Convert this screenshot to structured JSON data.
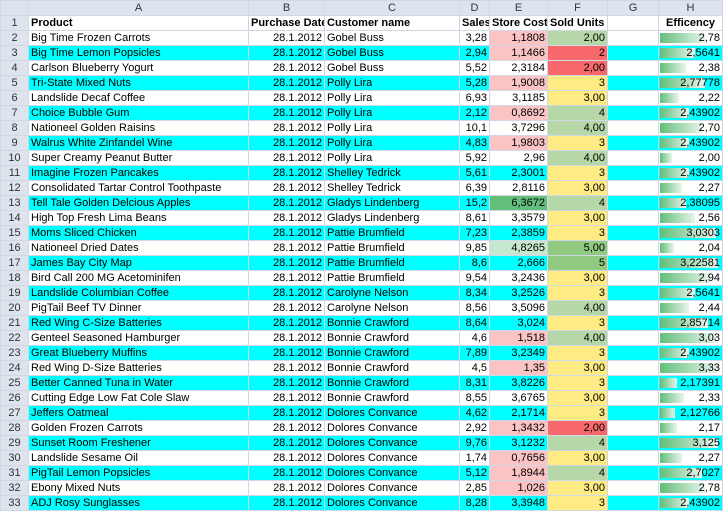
{
  "columns": [
    "A",
    "B",
    "C",
    "D",
    "E",
    "F",
    "G",
    "H"
  ],
  "headers": [
    "Product",
    "Purchase Date",
    "Customer name",
    "Sales",
    "Store Costs",
    "Sold Units",
    "",
    "Efficency"
  ],
  "colors": {
    "cyan": "#00ffff",
    "cost_red": "#f8696b",
    "cost_light_red": "#fbc3c4",
    "cost_green": "#63be7b",
    "cost_light_green": "#c6e8ce",
    "units_red": "#f8696b",
    "units_yellow": "#ffeb84",
    "units_green": "#b6d7a8",
    "units_dark_green": "#8fca80",
    "bar_green": "#63be7b"
  },
  "rows": [
    {
      "n": "2",
      "product": "Big Time Frozen Carrots",
      "date": "28.1.2012",
      "customer": "Gobel Buss",
      "sales": "3,28",
      "cost": "1,1808",
      "cost_c": "r",
      "units": "2,00",
      "units_c": "g",
      "eff": "2,78",
      "eff_v": 0.78,
      "cyan": false
    },
    {
      "n": "3",
      "product": "Big Time Lemon Popsicles",
      "date": "28.1.2012",
      "customer": "Gobel Buss",
      "sales": "2,94",
      "cost": "1,1466",
      "cost_c": "r",
      "units": "2",
      "units_c": "R",
      "eff": "2,5641",
      "eff_v": 0.6,
      "cyan": true
    },
    {
      "n": "4",
      "product": "Carlson Blueberry Yogurt",
      "date": "28.1.2012",
      "customer": "Gobel Buss",
      "sales": "5,52",
      "cost": "2,3184",
      "cost_c": "",
      "units": "2,00",
      "units_c": "R",
      "eff": "2,38",
      "eff_v": 0.45,
      "cyan": false
    },
    {
      "n": "5",
      "product": "Tri-State Mixed Nuts",
      "date": "28.1.2012",
      "customer": "Polly Lira",
      "sales": "5,28",
      "cost": "1,9008",
      "cost_c": "r",
      "units": "3",
      "units_c": "y",
      "eff": "2,77778",
      "eff_v": 0.78,
      "cyan": true
    },
    {
      "n": "6",
      "product": "Landslide Decaf Coffee",
      "date": "28.1.2012",
      "customer": "Polly Lira",
      "sales": "6,93",
      "cost": "3,1185",
      "cost_c": "",
      "units": "3,00",
      "units_c": "y",
      "eff": "2,22",
      "eff_v": 0.33,
      "cyan": false
    },
    {
      "n": "7",
      "product": "Choice Bubble Gum",
      "date": "28.1.2012",
      "customer": "Polly Lira",
      "sales": "2,12",
      "cost": "0,8692",
      "cost_c": "r",
      "units": "4",
      "units_c": "g",
      "eff": "2,43902",
      "eff_v": 0.5,
      "cyan": true
    },
    {
      "n": "8",
      "product": "Nationeel Golden Raisins",
      "date": "28.1.2012",
      "customer": "Polly Lira",
      "sales": "10,1",
      "cost": "3,7296",
      "cost_c": "",
      "units": "4,00",
      "units_c": "g",
      "eff": "2,70",
      "eff_v": 0.72,
      "cyan": false
    },
    {
      "n": "9",
      "product": "Walrus White Zinfandel Wine",
      "date": "28.1.2012",
      "customer": "Polly Lira",
      "sales": "4,83",
      "cost": "1,9803",
      "cost_c": "r",
      "units": "3",
      "units_c": "y",
      "eff": "2,43902",
      "eff_v": 0.5,
      "cyan": true
    },
    {
      "n": "10",
      "product": "Super Creamy Peanut Butter",
      "date": "28.1.2012",
      "customer": "Polly Lira",
      "sales": "5,92",
      "cost": "2,96",
      "cost_c": "",
      "units": "4,00",
      "units_c": "g",
      "eff": "2,00",
      "eff_v": 0.2,
      "cyan": false
    },
    {
      "n": "11",
      "product": "Imagine Frozen Pancakes",
      "date": "28.1.2012",
      "customer": "Shelley Tedrick",
      "sales": "5,61",
      "cost": "2,3001",
      "cost_c": "",
      "units": "3",
      "units_c": "y",
      "eff": "2,43902",
      "eff_v": 0.5,
      "cyan": true
    },
    {
      "n": "12",
      "product": "Consolidated Tartar Control Toothpaste",
      "date": "28.1.2012",
      "customer": "Shelley Tedrick",
      "sales": "6,39",
      "cost": "2,8116",
      "cost_c": "",
      "units": "3,00",
      "units_c": "y",
      "eff": "2,27",
      "eff_v": 0.38,
      "cyan": false
    },
    {
      "n": "13",
      "product": "Tell Tale Golden Delcious Apples",
      "date": "28.1.2012",
      "customer": "Gladys Lindenberg",
      "sales": "15,2",
      "cost": "6,3672",
      "cost_c": "G",
      "units": "4",
      "units_c": "g",
      "eff": "2,38095",
      "eff_v": 0.45,
      "cyan": true
    },
    {
      "n": "14",
      "product": "High Top Fresh Lima Beans",
      "date": "28.1.2012",
      "customer": "Gladys Lindenberg",
      "sales": "8,61",
      "cost": "3,3579",
      "cost_c": "",
      "units": "3,00",
      "units_c": "y",
      "eff": "2,56",
      "eff_v": 0.6,
      "cyan": false
    },
    {
      "n": "15",
      "product": "Moms Sliced Chicken",
      "date": "28.1.2012",
      "customer": "Pattie Brumfield",
      "sales": "7,23",
      "cost": "2,3859",
      "cost_c": "",
      "units": "3",
      "units_c": "y",
      "eff": "3,0303",
      "eff_v": 0.97,
      "cyan": true
    },
    {
      "n": "16",
      "product": "Nationeel Dried Dates",
      "date": "28.1.2012",
      "customer": "Pattie Brumfield",
      "sales": "9,85",
      "cost": "4,8265",
      "cost_c": "g",
      "units": "5,00",
      "units_c": "G",
      "eff": "2,04",
      "eff_v": 0.24,
      "cyan": false
    },
    {
      "n": "17",
      "product": "James Bay City Map",
      "date": "28.1.2012",
      "customer": "Pattie Brumfield",
      "sales": "8,6",
      "cost": "2,666",
      "cost_c": "",
      "units": "5",
      "units_c": "G",
      "eff": "3,22581",
      "eff_v": 1.0,
      "cyan": true
    },
    {
      "n": "18",
      "product": "Bird Call 200 MG Acetominifen",
      "date": "28.1.2012",
      "customer": "Pattie Brumfield",
      "sales": "9,54",
      "cost": "3,2436",
      "cost_c": "",
      "units": "3,00",
      "units_c": "y",
      "eff": "2,94",
      "eff_v": 0.88,
      "cyan": false
    },
    {
      "n": "19",
      "product": "Landslide Columbian Coffee",
      "date": "28.1.2012",
      "customer": "Carolyne Nelson",
      "sales": "8,34",
      "cost": "3,2526",
      "cost_c": "",
      "units": "3",
      "units_c": "y",
      "eff": "2,5641",
      "eff_v": 0.6,
      "cyan": true
    },
    {
      "n": "20",
      "product": "PigTail Beef TV Dinner",
      "date": "28.1.2012",
      "customer": "Carolyne Nelson",
      "sales": "8,56",
      "cost": "3,5096",
      "cost_c": "",
      "units": "4,00",
      "units_c": "g",
      "eff": "2,44",
      "eff_v": 0.5,
      "cyan": false
    },
    {
      "n": "21",
      "product": "Red Wing C-Size Batteries",
      "date": "28.1.2012",
      "customer": "Bonnie Crawford",
      "sales": "8,64",
      "cost": "3,024",
      "cost_c": "",
      "units": "3",
      "units_c": "y",
      "eff": "2,85714",
      "eff_v": 0.83,
      "cyan": true
    },
    {
      "n": "22",
      "product": "Genteel Seasoned Hamburger",
      "date": "28.1.2012",
      "customer": "Bonnie Crawford",
      "sales": "4,6",
      "cost": "1,518",
      "cost_c": "r",
      "units": "4,00",
      "units_c": "g",
      "eff": "3,03",
      "eff_v": 0.97,
      "cyan": false
    },
    {
      "n": "23",
      "product": "Great Blueberry Muffins",
      "date": "28.1.2012",
      "customer": "Bonnie Crawford",
      "sales": "7,89",
      "cost": "3,2349",
      "cty": "",
      "cost_c": "",
      "units": "3",
      "units_c": "y",
      "eff": "2,43902",
      "eff_v": 0.5,
      "cyan": true
    },
    {
      "n": "24",
      "product": "Red Wing D-Size Batteries",
      "date": "28.1.2012",
      "customer": "Bonnie Crawford",
      "sales": "4,5",
      "cost": "1,35",
      "cost_c": "r",
      "units": "3,00",
      "units_c": "y",
      "eff": "3,33",
      "eff_v": 1.0,
      "cyan": false
    },
    {
      "n": "25",
      "product": "Better Canned Tuna in Water",
      "date": "28.1.2012",
      "customer": "Bonnie Crawford",
      "sales": "8,31",
      "cost": "3,8226",
      "cost_c": "",
      "units": "3",
      "units_c": "y",
      "eff": "2,17391",
      "eff_v": 0.3,
      "cyan": true
    },
    {
      "n": "26",
      "product": "Cutting Edge Low Fat Cole Slaw",
      "date": "28.1.2012",
      "customer": "Bonnie Crawford",
      "sales": "8,55",
      "cost": "3,6765",
      "cost_c": "",
      "units": "3,00",
      "units_c": "y",
      "eff": "2,33",
      "eff_v": 0.42,
      "cyan": false
    },
    {
      "n": "27",
      "product": "Jeffers Oatmeal",
      "date": "28.1.2012",
      "customer": "Dolores Convance",
      "sales": "4,62",
      "cost": "2,1714",
      "cost_c": "",
      "units": "3",
      "units_c": "y",
      "eff": "2,12766",
      "eff_v": 0.26,
      "cyan": true
    },
    {
      "n": "28",
      "product": "Golden Frozen Carrots",
      "date": "28.1.2012",
      "customer": "Dolores Convance",
      "sales": "2,92",
      "cost": "1,3432",
      "cost_c": "r",
      "units": "2,00",
      "units_c": "R",
      "eff": "2,17",
      "eff_v": 0.3,
      "cyan": false
    },
    {
      "n": "29",
      "product": "Sunset Room Freshener",
      "date": "28.1.2012",
      "customer": "Dolores Convance",
      "sales": "9,76",
      "cost": "3,1232",
      "cost_c": "",
      "units": "4",
      "units_c": "g",
      "eff": "3,125",
      "eff_v": 1.0,
      "cyan": true
    },
    {
      "n": "30",
      "product": "Landslide Sesame Oil",
      "date": "28.1.2012",
      "customer": "Dolores Convance",
      "sales": "1,74",
      "cost": "0,7656",
      "cost_c": "r",
      "units": "3,00",
      "units_c": "y",
      "eff": "2,27",
      "eff_v": 0.38,
      "cyan": false
    },
    {
      "n": "31",
      "product": "PigTail Lemon Popsicles",
      "date": "28.1.2012",
      "customer": "Dolores Convance",
      "sales": "5,12",
      "cost": "1,8944",
      "cost_c": "r",
      "units": "4",
      "units_c": "g",
      "eff": "2,7027",
      "eff_v": 0.72,
      "cyan": true
    },
    {
      "n": "32",
      "product": "Ebony Mixed Nuts",
      "date": "28.1.2012",
      "customer": "Dolores Convance",
      "sales": "2,85",
      "cost": "1,026",
      "cost_c": "r",
      "units": "3,00",
      "units_c": "y",
      "eff": "2,78",
      "eff_v": 0.78,
      "cyan": false
    },
    {
      "n": "33",
      "product": "ADJ Rosy Sunglasses",
      "date": "28.1.2012",
      "customer": "Dolores Convance",
      "sales": "8,28",
      "cost": "3,3948",
      "cost_c": "",
      "units": "3",
      "units_c": "y",
      "eff": "2,43902",
      "eff_v": 0.5,
      "cyan": true
    }
  ]
}
